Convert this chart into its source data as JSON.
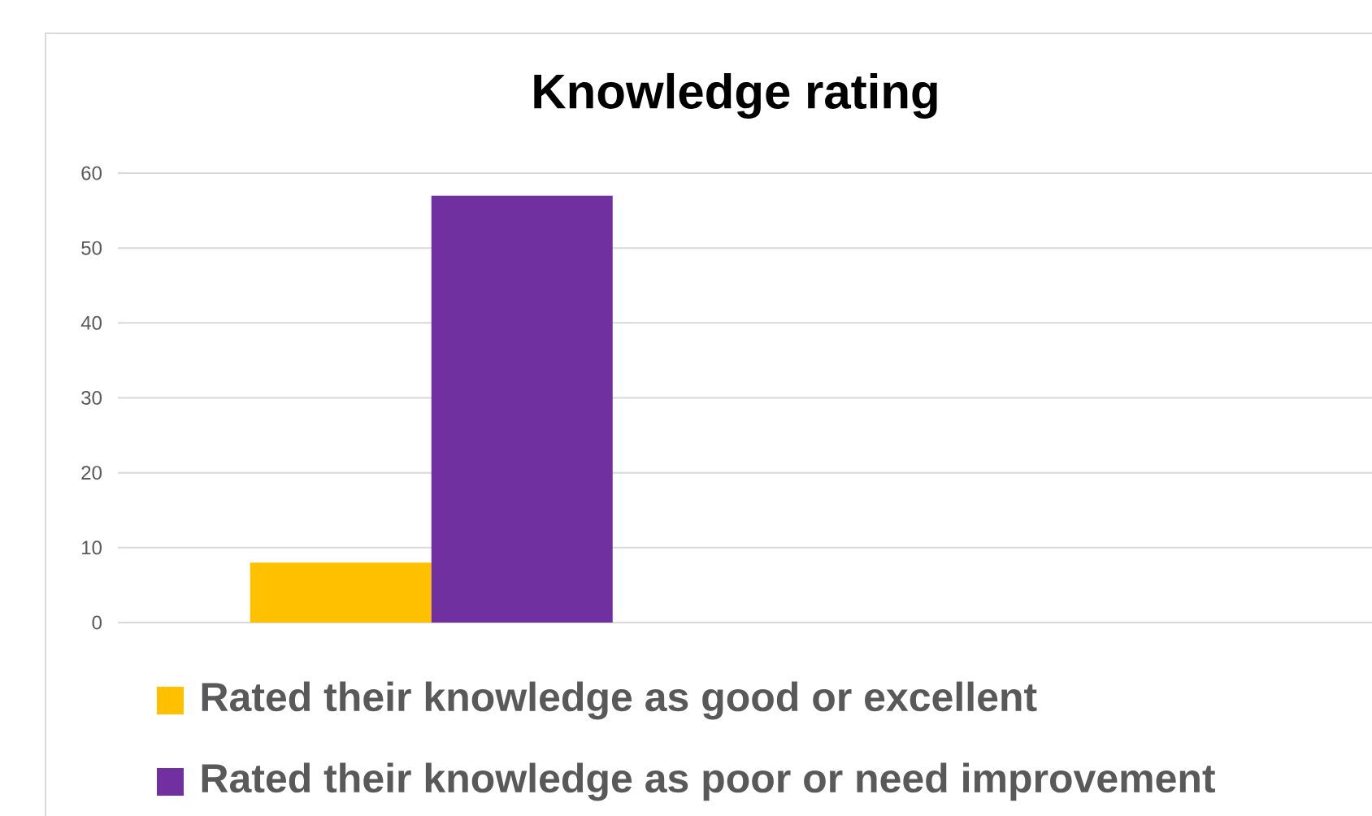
{
  "chart_data": {
    "type": "bar",
    "title": "Knowledge rating",
    "categories": [
      null
    ],
    "series": [
      {
        "name": "Rated their knowledge as good or excellent",
        "color": "#ffc000",
        "values": [
          8
        ]
      },
      {
        "name": "Rated their knowledge as poor or need improvement",
        "color": "#7030a0",
        "values": [
          57
        ]
      }
    ],
    "ylim": [
      0,
      60
    ],
    "yticks": [
      0,
      10,
      20,
      30,
      40,
      50,
      60
    ],
    "grid": "y",
    "legend": "bottom",
    "tick_labels": "y"
  }
}
